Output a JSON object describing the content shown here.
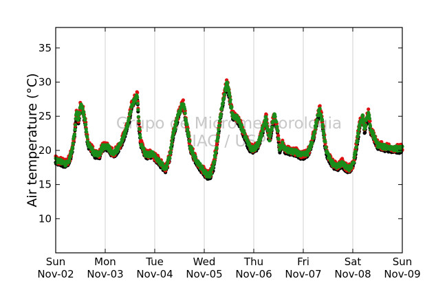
{
  "chart_data": {
    "type": "scatter",
    "ylabel": "Air temperature (°C)",
    "xlabel": "",
    "ylim": [
      5,
      38
    ],
    "yticks": [
      10,
      15,
      20,
      25,
      30,
      35
    ],
    "xlim_days": [
      0,
      7
    ],
    "xtick_labels": [
      {
        "day": "Sun",
        "date": "Nov-02"
      },
      {
        "day": "Mon",
        "date": "Nov-03"
      },
      {
        "day": "Tue",
        "date": "Nov-04"
      },
      {
        "day": "Wed",
        "date": "Nov-05"
      },
      {
        "day": "Thu",
        "date": "Nov-06"
      },
      {
        "day": "Fri",
        "date": "Nov-07"
      },
      {
        "day": "Sat",
        "date": "Nov-08"
      },
      {
        "day": "Sun",
        "date": "Nov-09"
      }
    ],
    "grid": "vertical",
    "watermark": [
      "Grupo de Micrometeorologia",
      "IAG / USP"
    ],
    "series": [
      {
        "color": "#000000",
        "offset": -0.35,
        "jitter": 0.25
      },
      {
        "color": "#dd1111",
        "offset": 0.15,
        "jitter": 0.55
      },
      {
        "color": "#1a8c1a",
        "offset": 0.05,
        "jitter": 0.35
      }
    ],
    "keypoints_x_days_y_degC": [
      [
        0.0,
        18.5
      ],
      [
        0.1,
        18.3
      ],
      [
        0.2,
        18.0
      ],
      [
        0.28,
        18.6
      ],
      [
        0.33,
        20.0
      ],
      [
        0.38,
        22.5
      ],
      [
        0.42,
        25.5
      ],
      [
        0.46,
        24.5
      ],
      [
        0.5,
        26.5
      ],
      [
        0.55,
        26.0
      ],
      [
        0.6,
        24.0
      ],
      [
        0.65,
        21.0
      ],
      [
        0.7,
        20.5
      ],
      [
        0.78,
        19.5
      ],
      [
        0.88,
        19.3
      ],
      [
        0.95,
        20.5
      ],
      [
        1.05,
        20.5
      ],
      [
        1.12,
        19.8
      ],
      [
        1.18,
        19.5
      ],
      [
        1.25,
        20.2
      ],
      [
        1.32,
        21.0
      ],
      [
        1.4,
        22.5
      ],
      [
        1.48,
        24.5
      ],
      [
        1.53,
        26.5
      ],
      [
        1.6,
        27.5
      ],
      [
        1.65,
        28.0
      ],
      [
        1.68,
        24.0
      ],
      [
        1.72,
        21.0
      ],
      [
        1.8,
        19.5
      ],
      [
        1.88,
        19.3
      ],
      [
        1.95,
        19.5
      ],
      [
        2.0,
        19.0
      ],
      [
        2.08,
        18.5
      ],
      [
        2.15,
        17.8
      ],
      [
        2.22,
        17.3
      ],
      [
        2.3,
        19.0
      ],
      [
        2.38,
        22.5
      ],
      [
        2.45,
        24.5
      ],
      [
        2.52,
        26.0
      ],
      [
        2.58,
        27.0
      ],
      [
        2.65,
        23.5
      ],
      [
        2.72,
        20.5
      ],
      [
        2.8,
        19.0
      ],
      [
        2.9,
        17.8
      ],
      [
        2.98,
        17.0
      ],
      [
        3.05,
        16.4
      ],
      [
        3.12,
        16.4
      ],
      [
        3.18,
        17.5
      ],
      [
        3.25,
        20.5
      ],
      [
        3.3,
        23.5
      ],
      [
        3.35,
        26.0
      ],
      [
        3.4,
        28.0
      ],
      [
        3.46,
        30.0
      ],
      [
        3.52,
        27.5
      ],
      [
        3.58,
        25.0
      ],
      [
        3.65,
        24.8
      ],
      [
        3.72,
        24.0
      ],
      [
        3.8,
        22.5
      ],
      [
        3.88,
        21.0
      ],
      [
        3.94,
        20.2
      ],
      [
        4.0,
        20.2
      ],
      [
        4.06,
        20.5
      ],
      [
        4.12,
        21.5
      ],
      [
        4.18,
        23.0
      ],
      [
        4.25,
        24.8
      ],
      [
        4.28,
        23.0
      ],
      [
        4.32,
        21.5
      ],
      [
        4.38,
        24.0
      ],
      [
        4.42,
        25.2
      ],
      [
        4.48,
        23.0
      ],
      [
        4.52,
        20.2
      ],
      [
        4.58,
        20.8
      ],
      [
        4.65,
        20.0
      ],
      [
        4.75,
        19.8
      ],
      [
        4.85,
        19.7
      ],
      [
        4.95,
        19.3
      ],
      [
        5.0,
        19.3
      ],
      [
        5.08,
        19.5
      ],
      [
        5.15,
        20.5
      ],
      [
        5.22,
        22.5
      ],
      [
        5.28,
        24.5
      ],
      [
        5.33,
        26.0
      ],
      [
        5.38,
        24.5
      ],
      [
        5.43,
        21.5
      ],
      [
        5.48,
        19.5
      ],
      [
        5.55,
        18.5
      ],
      [
        5.62,
        17.8
      ],
      [
        5.7,
        17.6
      ],
      [
        5.78,
        18.2
      ],
      [
        5.85,
        17.5
      ],
      [
        5.92,
        17.3
      ],
      [
        6.0,
        17.8
      ],
      [
        6.05,
        19.5
      ],
      [
        6.1,
        22.0
      ],
      [
        6.15,
        24.0
      ],
      [
        6.2,
        25.0
      ],
      [
        6.24,
        23.0
      ],
      [
        6.28,
        24.5
      ],
      [
        6.32,
        25.5
      ],
      [
        6.36,
        23.0
      ],
      [
        6.4,
        22.5
      ],
      [
        6.45,
        21.5
      ],
      [
        6.5,
        20.8
      ],
      [
        6.6,
        20.5
      ],
      [
        6.7,
        20.4
      ],
      [
        6.8,
        20.3
      ],
      [
        6.9,
        20.2
      ],
      [
        7.0,
        20.2
      ]
    ]
  }
}
